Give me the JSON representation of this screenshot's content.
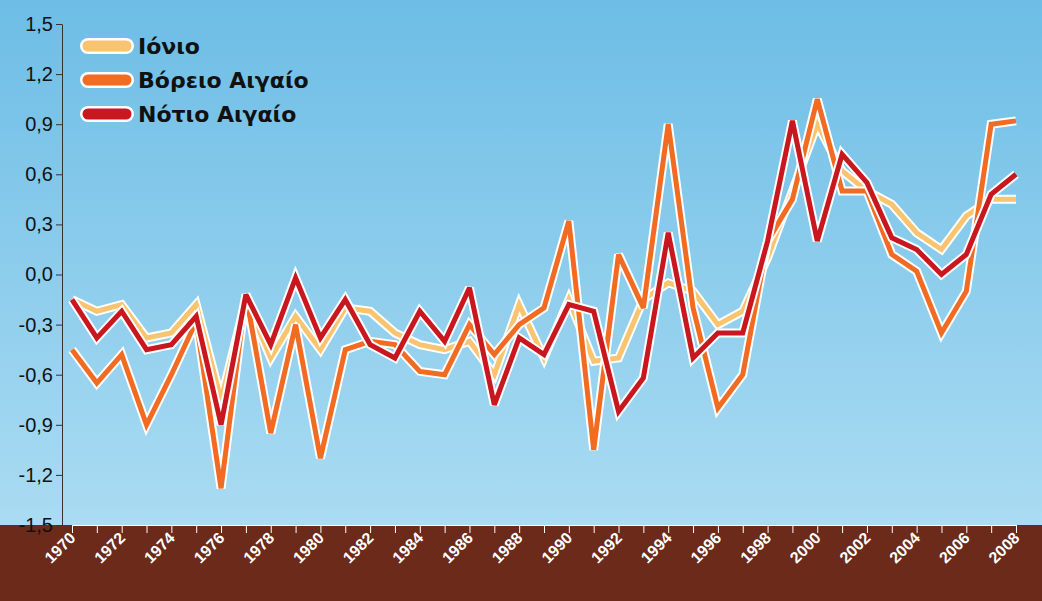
{
  "chart_data": {
    "type": "line",
    "categories": [
      "1970",
      null,
      "1972",
      null,
      "1974",
      null,
      "1976",
      null,
      "1978",
      null,
      "1980",
      null,
      "1982",
      null,
      "1984",
      null,
      "1986",
      null,
      "1988",
      null,
      "1990",
      null,
      "1992",
      null,
      "1994",
      null,
      "1996",
      null,
      "1998",
      null,
      "2000",
      null,
      "2002",
      null,
      "2004",
      null,
      "2006",
      null,
      "2008"
    ],
    "series": [
      {
        "name": "Ιόνιο",
        "color": "#f9c46f",
        "values": [
          -0.15,
          -0.22,
          -0.18,
          -0.38,
          -0.35,
          -0.18,
          -0.75,
          -0.15,
          -0.5,
          -0.25,
          -0.45,
          -0.2,
          -0.22,
          -0.35,
          -0.42,
          -0.45,
          -0.4,
          -0.6,
          -0.18,
          -0.5,
          -0.15,
          -0.52,
          -0.5,
          -0.15,
          -0.05,
          -0.1,
          -0.3,
          -0.22,
          0.1,
          0.5,
          0.9,
          0.62,
          0.5,
          0.42,
          0.25,
          0.15,
          0.35,
          0.45,
          0.45
        ]
      },
      {
        "name": "Βόρειο Αιγαίο",
        "color": "#f26b22",
        "values": [
          -0.45,
          -0.65,
          -0.48,
          -0.9,
          -0.6,
          -0.28,
          -1.28,
          -0.12,
          -0.95,
          -0.3,
          -1.1,
          -0.45,
          -0.4,
          -0.42,
          -0.58,
          -0.6,
          -0.3,
          -0.48,
          -0.3,
          -0.2,
          0.32,
          -1.05,
          0.12,
          -0.2,
          0.9,
          -0.2,
          -0.8,
          -0.6,
          0.2,
          0.45,
          1.05,
          0.5,
          0.5,
          0.12,
          0.02,
          -0.35,
          -0.1,
          0.9,
          0.92
        ]
      },
      {
        "name": "Νότιο Αιγαίο",
        "color": "#c8171e",
        "values": [
          -0.15,
          -0.38,
          -0.22,
          -0.45,
          -0.42,
          -0.25,
          -0.9,
          -0.12,
          -0.42,
          -0.02,
          -0.38,
          -0.15,
          -0.42,
          -0.5,
          -0.22,
          -0.4,
          -0.08,
          -0.78,
          -0.38,
          -0.48,
          -0.18,
          -0.22,
          -0.82,
          -0.62,
          0.25,
          -0.5,
          -0.35,
          -0.35,
          0.2,
          0.92,
          0.2,
          0.72,
          0.55,
          0.22,
          0.15,
          0.0,
          0.12,
          0.48,
          0.6
        ]
      }
    ],
    "ylim": [
      -1.5,
      1.5
    ],
    "yticks": [
      {
        "value": 1.5,
        "label": "1,5"
      },
      {
        "value": 1.2,
        "label": "1,2"
      },
      {
        "value": 0.9,
        "label": "0,9"
      },
      {
        "value": 0.6,
        "label": "0,6"
      },
      {
        "value": 0.3,
        "label": "0,3"
      },
      {
        "value": 0.0,
        "label": "0,0"
      },
      {
        "value": -0.3,
        "label": "-0,3"
      },
      {
        "value": -0.6,
        "label": "-0,6"
      },
      {
        "value": -0.9,
        "label": "-0,9"
      },
      {
        "value": -1.2,
        "label": "-1,2"
      },
      {
        "value": -1.5,
        "label": "-1,5"
      }
    ],
    "grid": false,
    "legend": "top-left"
  }
}
